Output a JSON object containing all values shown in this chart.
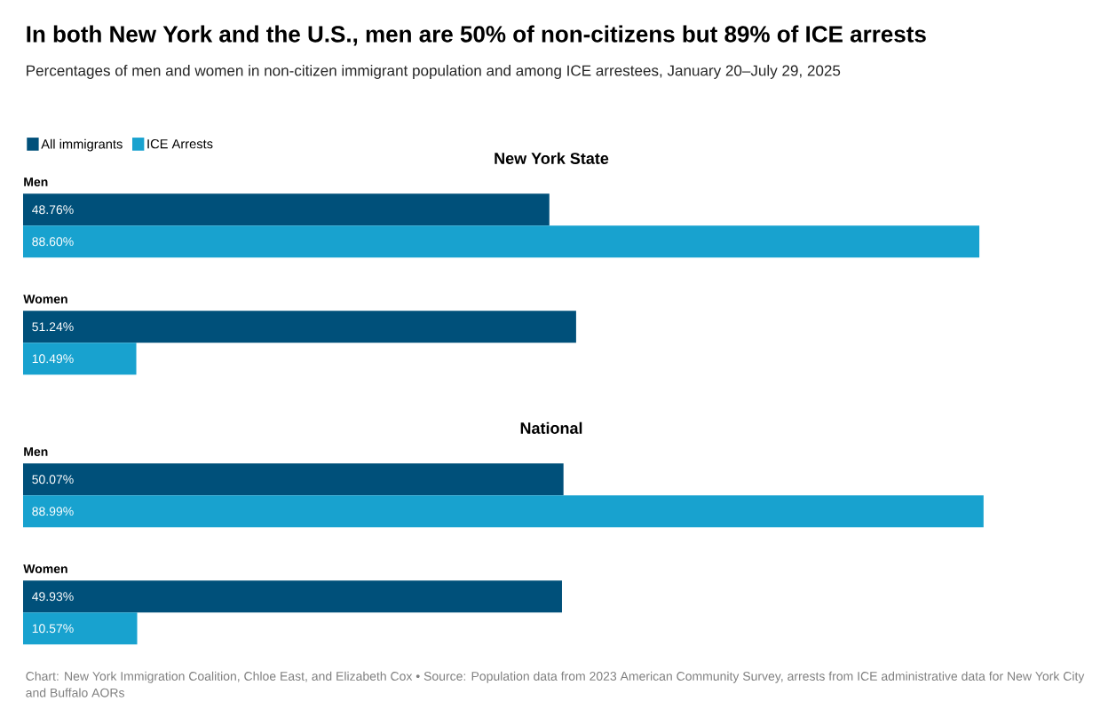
{
  "chart_data": [
    {
      "type": "other",
      "title": "In both New York and the U.S., men are 50% of non-citizens but 89% of ICE arrests",
      "subtitle": "Percentages of men and women in non-citizen immigrant population and among ICE arrestees, January 20–July 29, 2025",
      "annotations": [
        "Chart: New York Immigration Coalition, Chloe East, and Elizabeth Cox • Source: Population data from 2023 American Community Survey, arrests from ICE administrative data for New York City and Buffalo AORs"
      ]
    },
    {
      "type": "bar",
      "orientation": "horizontal",
      "title": "New York State",
      "legend": "top left",
      "categories": [
        "Men",
        "Women"
      ],
      "series": [
        {
          "name": "All immigrants",
          "color": "#00507a",
          "values": [
            48.76,
            51.24
          ],
          "value_labels": [
            "48.76%",
            "51.24%"
          ]
        },
        {
          "name": "ICE Arrests",
          "color": "#18a2cf",
          "values": [
            88.6,
            10.49
          ],
          "value_labels": [
            "88.60%",
            "10.49%"
          ]
        }
      ]
    },
    {
      "type": "bar",
      "orientation": "horizontal",
      "title": "National",
      "categories": [
        "Men",
        "Women"
      ],
      "series": [
        {
          "color": "#00507a",
          "values": [
            50.07,
            49.93
          ],
          "value_labels": [
            "50.07%",
            "49.93%"
          ]
        },
        {
          "color": "#18a2cf",
          "values": [
            88.99,
            10.57
          ],
          "value_labels": [
            "88.99%",
            "10.57%"
          ]
        }
      ]
    }
  ]
}
